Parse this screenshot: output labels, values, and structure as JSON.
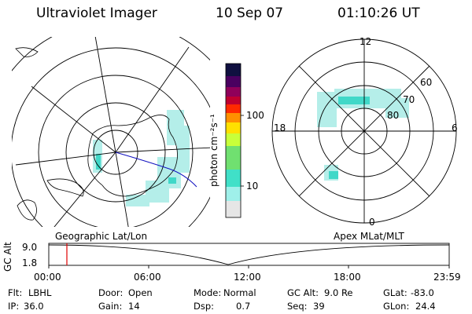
{
  "header": {
    "instrument": "Ultraviolet Imager",
    "date": "10 Sep 07",
    "time": "01:10:26 UT"
  },
  "colorbar": {
    "unit_label": "photon cm⁻²s⁻¹",
    "ticks": [
      "100",
      "10"
    ],
    "colors": [
      "#e6e6e6",
      "#9ff0ea",
      "#40e0c8",
      "#70e070",
      "#c8ff3a",
      "#ffe000",
      "#ff9000",
      "#ff2a00",
      "#c00030",
      "#90005a",
      "#4a0060",
      "#101040"
    ]
  },
  "left_map": {
    "label": "Geographic Lat/Lon"
  },
  "right_map": {
    "label": "Apex  MLat/MLT",
    "mlt_labels": {
      "top": "12",
      "left": "18",
      "right": "6",
      "bottom": "0"
    },
    "lat_labels": [
      "60",
      "70",
      "80"
    ]
  },
  "altitude_plot": {
    "ylabel": "GC Alt",
    "yticks": [
      "9.0",
      "1.8"
    ],
    "xticks": [
      "00:00",
      "06:00",
      "12:00",
      "18:00",
      "23:59"
    ],
    "cursor_color": "#e00000"
  },
  "info": {
    "filter_label": "Flt:",
    "filter": "LBHL",
    "door_label": "Door:",
    "door": "Open",
    "mode_label": "Mode:",
    "mode": "Normal",
    "gcalt_label": "GC Alt:",
    "gcalt": "9.0 Re",
    "glat_label": "GLat:",
    "glat": "-83.0",
    "ip_label": "IP:",
    "ip": "36.0",
    "gain_label": "Gain:",
    "gain": "14",
    "dsp_label": "Dsp:",
    "dsp": "0.7",
    "seq_label": "Seq:",
    "seq": "39",
    "glon_label": "GLon:",
    "glon": "24.4"
  }
}
